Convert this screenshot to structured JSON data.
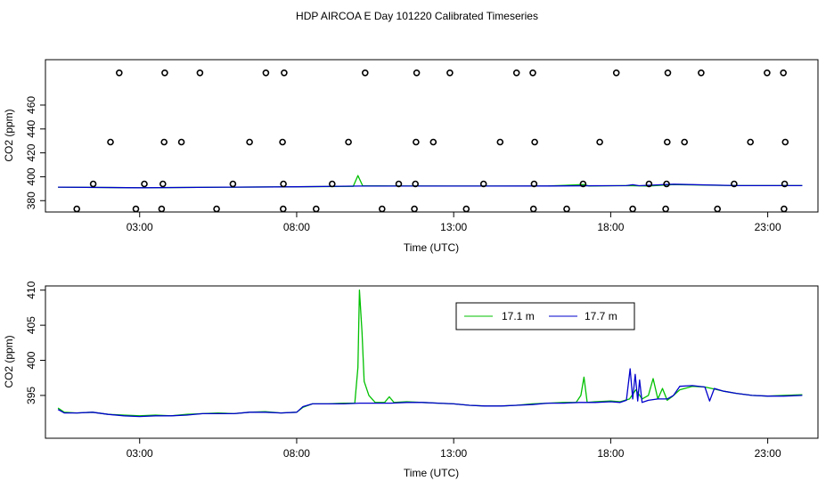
{
  "chart_data": [
    {
      "type": "scatter",
      "title": "HDP AIRCOA E  Day 101220  Calibrated Timeseries",
      "xlabel": "Time (UTC)",
      "ylabel": "CO2 (ppm)",
      "xlim": [
        0.0,
        24.6
      ],
      "ylim": [
        370.5,
        498.0
      ],
      "xticks": [
        3,
        8,
        13,
        18,
        23
      ],
      "xtick_labels": [
        "03:00",
        "08:00",
        "13:00",
        "18:00",
        "23:00"
      ],
      "yticks": [
        380,
        400,
        420,
        440,
        460
      ],
      "ytick_labels": [
        "380",
        "400",
        "420",
        "440",
        "460"
      ],
      "circle_series": {
        "name": "",
        "points": [
          [
            1.0,
            373
          ],
          [
            1.52,
            394
          ],
          [
            2.07,
            429
          ],
          [
            2.35,
            487
          ],
          [
            2.88,
            373
          ],
          [
            3.15,
            394
          ],
          [
            3.7,
            373
          ],
          [
            3.74,
            394
          ],
          [
            3.78,
            429
          ],
          [
            3.8,
            487
          ],
          [
            4.33,
            429
          ],
          [
            4.92,
            487
          ],
          [
            5.45,
            373
          ],
          [
            5.97,
            394
          ],
          [
            6.5,
            429
          ],
          [
            7.02,
            487
          ],
          [
            7.55,
            429
          ],
          [
            7.57,
            373
          ],
          [
            7.58,
            394
          ],
          [
            7.6,
            487
          ],
          [
            8.62,
            373
          ],
          [
            9.13,
            394
          ],
          [
            9.65,
            429
          ],
          [
            10.18,
            487
          ],
          [
            10.72,
            373
          ],
          [
            11.25,
            394
          ],
          [
            11.75,
            373
          ],
          [
            11.78,
            394
          ],
          [
            11.8,
            429
          ],
          [
            11.82,
            487
          ],
          [
            12.35,
            429
          ],
          [
            12.88,
            487
          ],
          [
            13.4,
            373
          ],
          [
            13.95,
            394
          ],
          [
            14.48,
            429
          ],
          [
            15.0,
            487
          ],
          [
            15.52,
            487
          ],
          [
            15.54,
            373
          ],
          [
            15.56,
            394
          ],
          [
            15.58,
            429
          ],
          [
            16.6,
            373
          ],
          [
            17.12,
            394
          ],
          [
            17.65,
            429
          ],
          [
            18.18,
            487
          ],
          [
            18.7,
            373
          ],
          [
            19.22,
            394
          ],
          [
            19.75,
            373
          ],
          [
            19.78,
            394
          ],
          [
            19.8,
            429
          ],
          [
            19.82,
            487
          ],
          [
            20.35,
            429
          ],
          [
            20.88,
            487
          ],
          [
            21.4,
            373
          ],
          [
            21.93,
            394
          ],
          [
            22.45,
            429
          ],
          [
            22.98,
            487
          ],
          [
            23.5,
            487
          ],
          [
            23.52,
            373
          ],
          [
            23.54,
            394
          ],
          [
            23.56,
            429
          ]
        ]
      },
      "series": [
        {
          "name": "17.1 m",
          "color": "#00c000",
          "points": [
            [
              0.4,
              391.3
            ],
            [
              3,
              390.8
            ],
            [
              6,
              391.3
            ],
            [
              8,
              391.6
            ],
            [
              9.8,
              392.0
            ],
            [
              9.95,
              401.0
            ],
            [
              10.1,
              392.5
            ],
            [
              11,
              392.3
            ],
            [
              14,
              392.2
            ],
            [
              16,
              392.3
            ],
            [
              17.15,
              393.5
            ],
            [
              17.3,
              392.3
            ],
            [
              18.5,
              392.6
            ],
            [
              19.2,
              392.3
            ],
            [
              20.0,
              393.5
            ],
            [
              22,
              392.6
            ],
            [
              24.1,
              392.6
            ]
          ]
        },
        {
          "name": "17.7 m",
          "color": "#0000cc",
          "points": [
            [
              0.4,
              391.3
            ],
            [
              3,
              390.8
            ],
            [
              6,
              391.3
            ],
            [
              8,
              391.6
            ],
            [
              10,
              392.2
            ],
            [
              14,
              392.2
            ],
            [
              16,
              392.3
            ],
            [
              18.5,
              392.6
            ],
            [
              18.7,
              393.3
            ],
            [
              18.9,
              392.5
            ],
            [
              20.0,
              393.8
            ],
            [
              22,
              392.6
            ],
            [
              24.1,
              392.6
            ]
          ]
        }
      ]
    },
    {
      "type": "line",
      "title": "",
      "xlabel": "Time (UTC)",
      "ylabel": "CO2 (ppm)",
      "xlim": [
        0.0,
        24.6
      ],
      "ylim": [
        388.9,
        410.6
      ],
      "xticks": [
        3,
        8,
        13,
        18,
        23
      ],
      "xtick_labels": [
        "03:00",
        "08:00",
        "13:00",
        "18:00",
        "23:00"
      ],
      "yticks": [
        395,
        400,
        405,
        410
      ],
      "ytick_labels": [
        "395",
        "400",
        "405",
        "410"
      ],
      "legend": {
        "position": "top-center",
        "labels": [
          "17.1 m",
          "17.7 m"
        ]
      },
      "series": [
        {
          "name": "17.1 m",
          "color": "#00c000",
          "points": [
            [
              0.4,
              393.2
            ],
            [
              0.6,
              392.6
            ],
            [
              1.0,
              392.5
            ],
            [
              1.5,
              392.6
            ],
            [
              2.0,
              392.3
            ],
            [
              2.5,
              392.2
            ],
            [
              3.0,
              392.1
            ],
            [
              3.5,
              392.2
            ],
            [
              4.0,
              392.1
            ],
            [
              4.5,
              392.3
            ],
            [
              5.0,
              392.4
            ],
            [
              5.5,
              392.5
            ],
            [
              6.0,
              392.4
            ],
            [
              6.5,
              392.6
            ],
            [
              7.0,
              392.7
            ],
            [
              7.5,
              392.5
            ],
            [
              8.0,
              392.6
            ],
            [
              8.2,
              393.3
            ],
            [
              8.5,
              393.8
            ],
            [
              9.0,
              393.8
            ],
            [
              9.5,
              393.9
            ],
            [
              9.85,
              393.9
            ],
            [
              9.95,
              399.0
            ],
            [
              10.0,
              410.0
            ],
            [
              10.08,
              404.0
            ],
            [
              10.15,
              397.0
            ],
            [
              10.3,
              395.0
            ],
            [
              10.5,
              394.0
            ],
            [
              10.8,
              394.0
            ],
            [
              10.95,
              394.8
            ],
            [
              11.1,
              394.0
            ],
            [
              11.5,
              394.1
            ],
            [
              12.0,
              394.0
            ],
            [
              12.5,
              393.9
            ],
            [
              13.0,
              393.8
            ],
            [
              13.5,
              393.6
            ],
            [
              14.0,
              393.5
            ],
            [
              14.5,
              393.5
            ],
            [
              15.0,
              393.6
            ],
            [
              15.5,
              393.8
            ],
            [
              16.0,
              393.9
            ],
            [
              16.5,
              394.0
            ],
            [
              16.9,
              394.0
            ],
            [
              17.05,
              395.0
            ],
            [
              17.15,
              397.6
            ],
            [
              17.25,
              394.0
            ],
            [
              17.5,
              394.1
            ],
            [
              18.0,
              394.2
            ],
            [
              18.3,
              394.1
            ],
            [
              18.6,
              394.5
            ],
            [
              18.8,
              395.8
            ],
            [
              19.0,
              394.5
            ],
            [
              19.2,
              395.0
            ],
            [
              19.35,
              397.4
            ],
            [
              19.5,
              394.5
            ],
            [
              19.65,
              396.0
            ],
            [
              19.8,
              394.3
            ],
            [
              19.95,
              394.8
            ],
            [
              20.2,
              395.8
            ],
            [
              20.6,
              396.3
            ],
            [
              21.0,
              396.2
            ],
            [
              21.3,
              395.9
            ],
            [
              21.6,
              395.6
            ],
            [
              22.0,
              395.3
            ],
            [
              22.5,
              395.0
            ],
            [
              23.0,
              394.9
            ],
            [
              23.5,
              395.0
            ],
            [
              24.1,
              395.1
            ]
          ]
        },
        {
          "name": "17.7 m",
          "color": "#0000cc",
          "points": [
            [
              0.4,
              393.0
            ],
            [
              0.6,
              392.5
            ],
            [
              1.0,
              392.5
            ],
            [
              1.5,
              392.6
            ],
            [
              2.0,
              392.3
            ],
            [
              2.5,
              392.1
            ],
            [
              3.0,
              392.0
            ],
            [
              3.5,
              392.1
            ],
            [
              4.0,
              392.1
            ],
            [
              4.5,
              392.2
            ],
            [
              5.0,
              392.4
            ],
            [
              5.5,
              392.4
            ],
            [
              6.0,
              392.4
            ],
            [
              6.5,
              392.6
            ],
            [
              7.0,
              392.6
            ],
            [
              7.5,
              392.5
            ],
            [
              8.0,
              392.6
            ],
            [
              8.2,
              393.4
            ],
            [
              8.5,
              393.8
            ],
            [
              9.0,
              393.8
            ],
            [
              9.5,
              393.8
            ],
            [
              10.0,
              393.9
            ],
            [
              10.5,
              393.9
            ],
            [
              11.0,
              393.9
            ],
            [
              11.5,
              394.0
            ],
            [
              12.0,
              394.0
            ],
            [
              12.5,
              393.9
            ],
            [
              13.0,
              393.8
            ],
            [
              13.5,
              393.6
            ],
            [
              14.0,
              393.5
            ],
            [
              14.5,
              393.5
            ],
            [
              15.0,
              393.6
            ],
            [
              15.5,
              393.7
            ],
            [
              16.0,
              393.9
            ],
            [
              16.5,
              393.9
            ],
            [
              17.0,
              394.0
            ],
            [
              17.5,
              394.0
            ],
            [
              18.0,
              394.1
            ],
            [
              18.3,
              394.0
            ],
            [
              18.5,
              394.3
            ],
            [
              18.62,
              398.8
            ],
            [
              18.7,
              394.5
            ],
            [
              18.78,
              398.0
            ],
            [
              18.86,
              394.2
            ],
            [
              18.92,
              397.2
            ],
            [
              19.0,
              394.0
            ],
            [
              19.2,
              394.3
            ],
            [
              19.5,
              394.5
            ],
            [
              19.8,
              394.5
            ],
            [
              20.0,
              395.0
            ],
            [
              20.2,
              396.3
            ],
            [
              20.6,
              396.4
            ],
            [
              21.0,
              396.2
            ],
            [
              21.15,
              394.2
            ],
            [
              21.3,
              396.0
            ],
            [
              21.6,
              395.6
            ],
            [
              22.0,
              395.3
            ],
            [
              22.5,
              395.0
            ],
            [
              23.0,
              394.9
            ],
            [
              23.5,
              394.9
            ],
            [
              24.1,
              395.0
            ]
          ]
        }
      ]
    }
  ]
}
